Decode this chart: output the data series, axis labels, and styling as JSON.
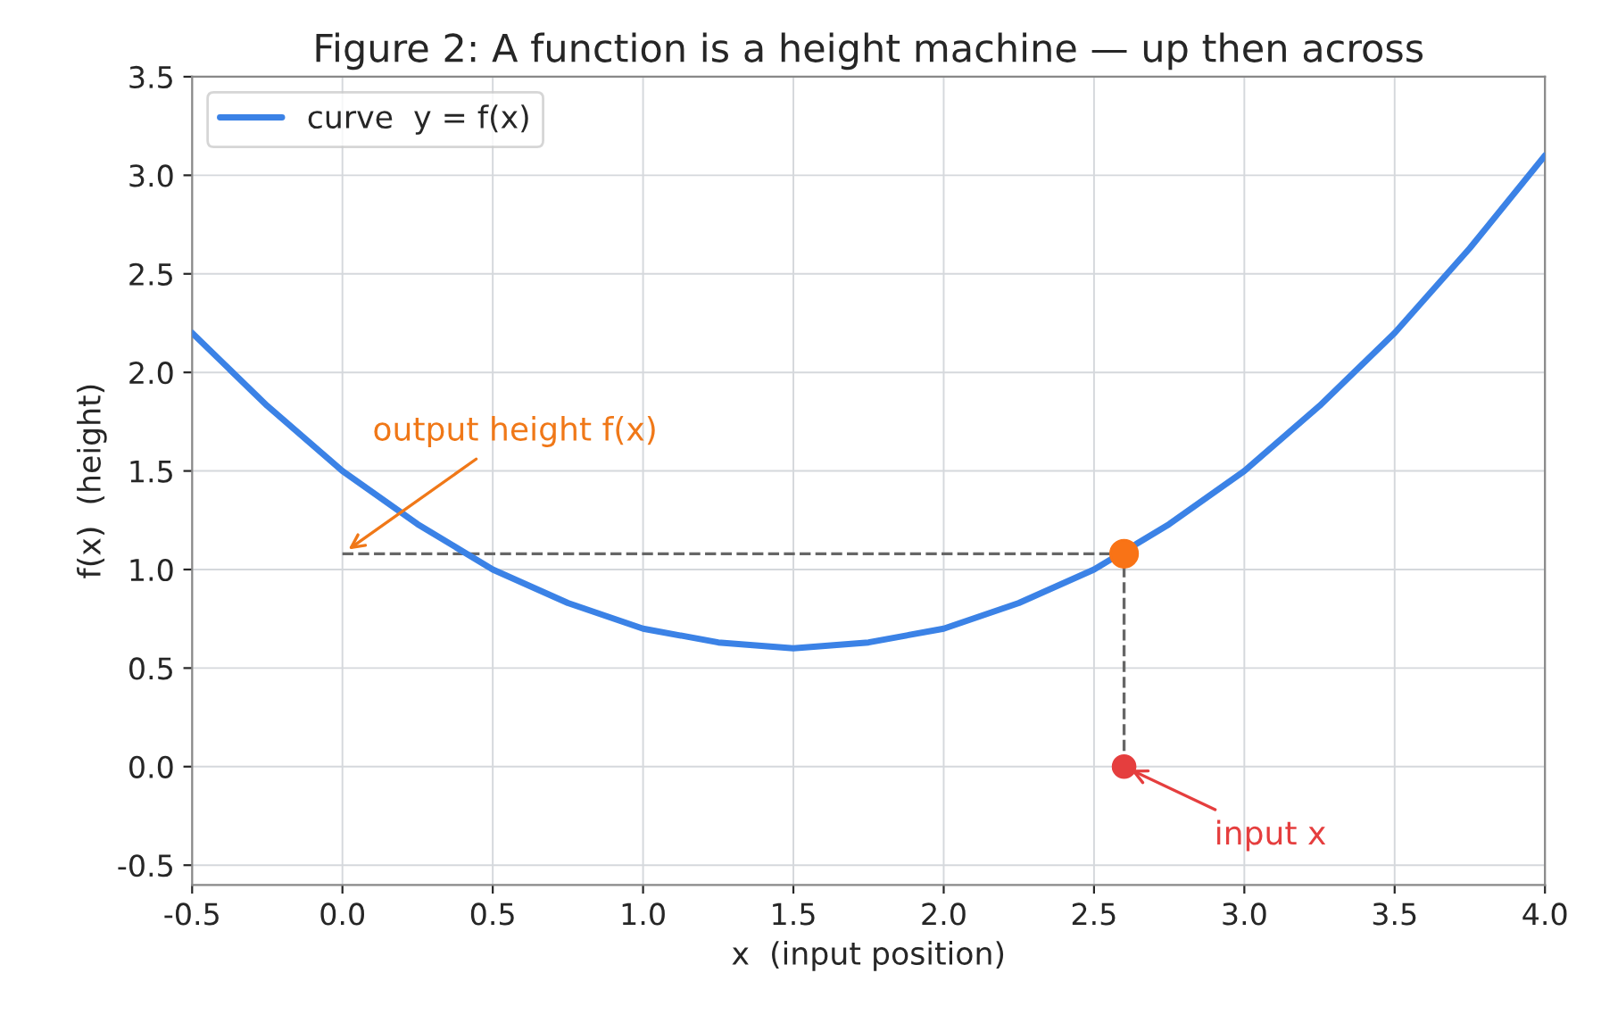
{
  "chart_data": {
    "type": "line",
    "title": "Figure 2: A function is a height machine — up then across",
    "xlabel": "x  (input position)",
    "ylabel": "f(x)  (height)",
    "series": [
      {
        "name": "curve  y = f(x)",
        "color": "#3b82e6",
        "x": [
          -0.5,
          -0.25,
          0,
          0.25,
          0.5,
          0.75,
          1.0,
          1.25,
          1.5,
          1.75,
          2.0,
          2.25,
          2.5,
          2.75,
          3.0,
          3.25,
          3.5,
          3.75,
          4.0
        ],
        "values": [
          2.2,
          1.83,
          1.5,
          1.23,
          1.0,
          0.83,
          0.7,
          0.63,
          0.6,
          0.63,
          0.7,
          0.83,
          1.0,
          1.23,
          1.5,
          1.83,
          2.2,
          2.63,
          3.1
        ]
      },
      {
        "type": "line",
        "line_style": "dashed",
        "color": "#666666",
        "x": [
          0,
          2.6
        ],
        "values": [
          1.08,
          1.08
        ]
      },
      {
        "type": "line",
        "line_style": "dashed",
        "color": "#666666",
        "x": [
          2.6,
          2.6
        ],
        "values": [
          0,
          1.08
        ]
      },
      {
        "type": "scatter",
        "color": "#f97316",
        "x": [
          2.6
        ],
        "values": [
          1.08
        ]
      },
      {
        "type": "scatter",
        "color": "#e53e3e",
        "x": [
          2.6
        ],
        "values": [
          0
        ]
      }
    ],
    "annotations": [
      {
        "text": "output height f(x)",
        "x": 0,
        "y": 1.08
      },
      {
        "text": "input x",
        "x": 2.6,
        "y": 0
      }
    ],
    "xlim": [
      -0.5,
      4.0
    ],
    "ylim": [
      -0.6,
      3.5
    ],
    "xticks": [
      -0.5,
      {
        "value": 0,
        "label": "0.0"
      },
      0.5,
      {
        "value": 1,
        "label": "1.0"
      },
      1.5,
      {
        "value": 2,
        "label": "2.0"
      },
      2.5,
      {
        "value": 3,
        "label": "3.0"
      },
      3.5,
      {
        "value": 4,
        "label": "4.0"
      }
    ],
    "yticks": [
      -0.5,
      {
        "value": 0,
        "label": "0.0"
      },
      0.5,
      {
        "value": 1,
        "label": "1.0"
      },
      1.5,
      {
        "value": 2,
        "label": "2.0"
      },
      2.5,
      {
        "value": 3,
        "label": "3.0"
      },
      3.5
    ],
    "grid": true,
    "legend": "top left"
  }
}
